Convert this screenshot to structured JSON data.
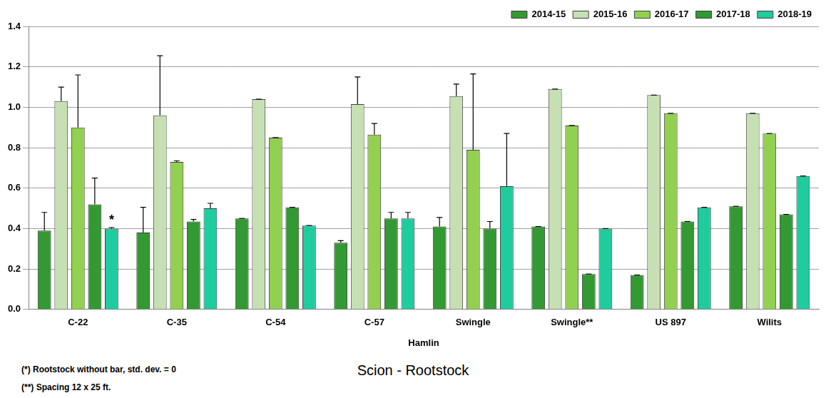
{
  "chart_data": {
    "type": "bar",
    "categories": [
      "C-22",
      "C-35",
      "C-54",
      "C-57",
      "Swingle",
      "Swingle**",
      "US 897",
      "Wilits"
    ],
    "group_label": "Hamlin",
    "x_label": "Scion - Rootstock",
    "series": [
      {
        "name": "2014-15",
        "color": "#339933",
        "values": [
          0.39,
          0.38,
          0.45,
          0.33,
          0.41,
          0.41,
          0.17,
          0.51
        ],
        "errors": [
          0.09,
          0.125,
          0,
          0.01,
          0.045,
          0,
          0,
          0
        ]
      },
      {
        "name": "2015-16",
        "color": "#c6e0b4",
        "values": [
          1.03,
          0.96,
          1.04,
          1.015,
          1.055,
          1.09,
          1.06,
          0.97
        ],
        "errors": [
          0.07,
          0.295,
          0,
          0.135,
          0.06,
          0,
          0,
          0
        ]
      },
      {
        "name": "2016-17",
        "color": "#92d050",
        "values": [
          0.9,
          0.73,
          0.85,
          0.865,
          0.79,
          0.91,
          0.97,
          0.87
        ],
        "errors": [
          0.26,
          0.005,
          0,
          0.055,
          0.375,
          0,
          0,
          0
        ]
      },
      {
        "name": "2017-18",
        "color": "#339933",
        "values": [
          0.52,
          0.435,
          0.505,
          0.45,
          0.4,
          0.175,
          0.435,
          0.47
        ],
        "errors": [
          0.13,
          0.01,
          0,
          0.03,
          0.035,
          0,
          0,
          0
        ]
      },
      {
        "name": "2018-19",
        "color": "#1fcc9e",
        "values": [
          0.4,
          0.5,
          0.415,
          0.45,
          0.61,
          0.4,
          0.505,
          0.66
        ],
        "errors": [
          0.005,
          0.025,
          0,
          0.03,
          0.26,
          0,
          0,
          0
        ]
      }
    ],
    "ylim": [
      0,
      1.4
    ],
    "yticks": [
      {
        "value": 0,
        "label": "0.0"
      },
      {
        "value": 0.2,
        "label": "0.2"
      },
      {
        "value": 0.4,
        "label": "0.4"
      },
      {
        "value": 0.6,
        "label": "0.6"
      },
      {
        "value": 0.8,
        "label": "0.8"
      },
      {
        "value": 1,
        "label": "1.0"
      },
      {
        "value": 1.2,
        "label": "1.2"
      },
      {
        "value": 1.4,
        "label": "1.4"
      }
    ],
    "grid": true,
    "legend": "top-right",
    "annotations": [
      {
        "series": "2018-19",
        "category": "C-22",
        "text": "*"
      }
    ],
    "notes": [
      "(*) Rootstock without bar, std. dev. = 0",
      "(**) Spacing 12 x 25 ft."
    ]
  }
}
